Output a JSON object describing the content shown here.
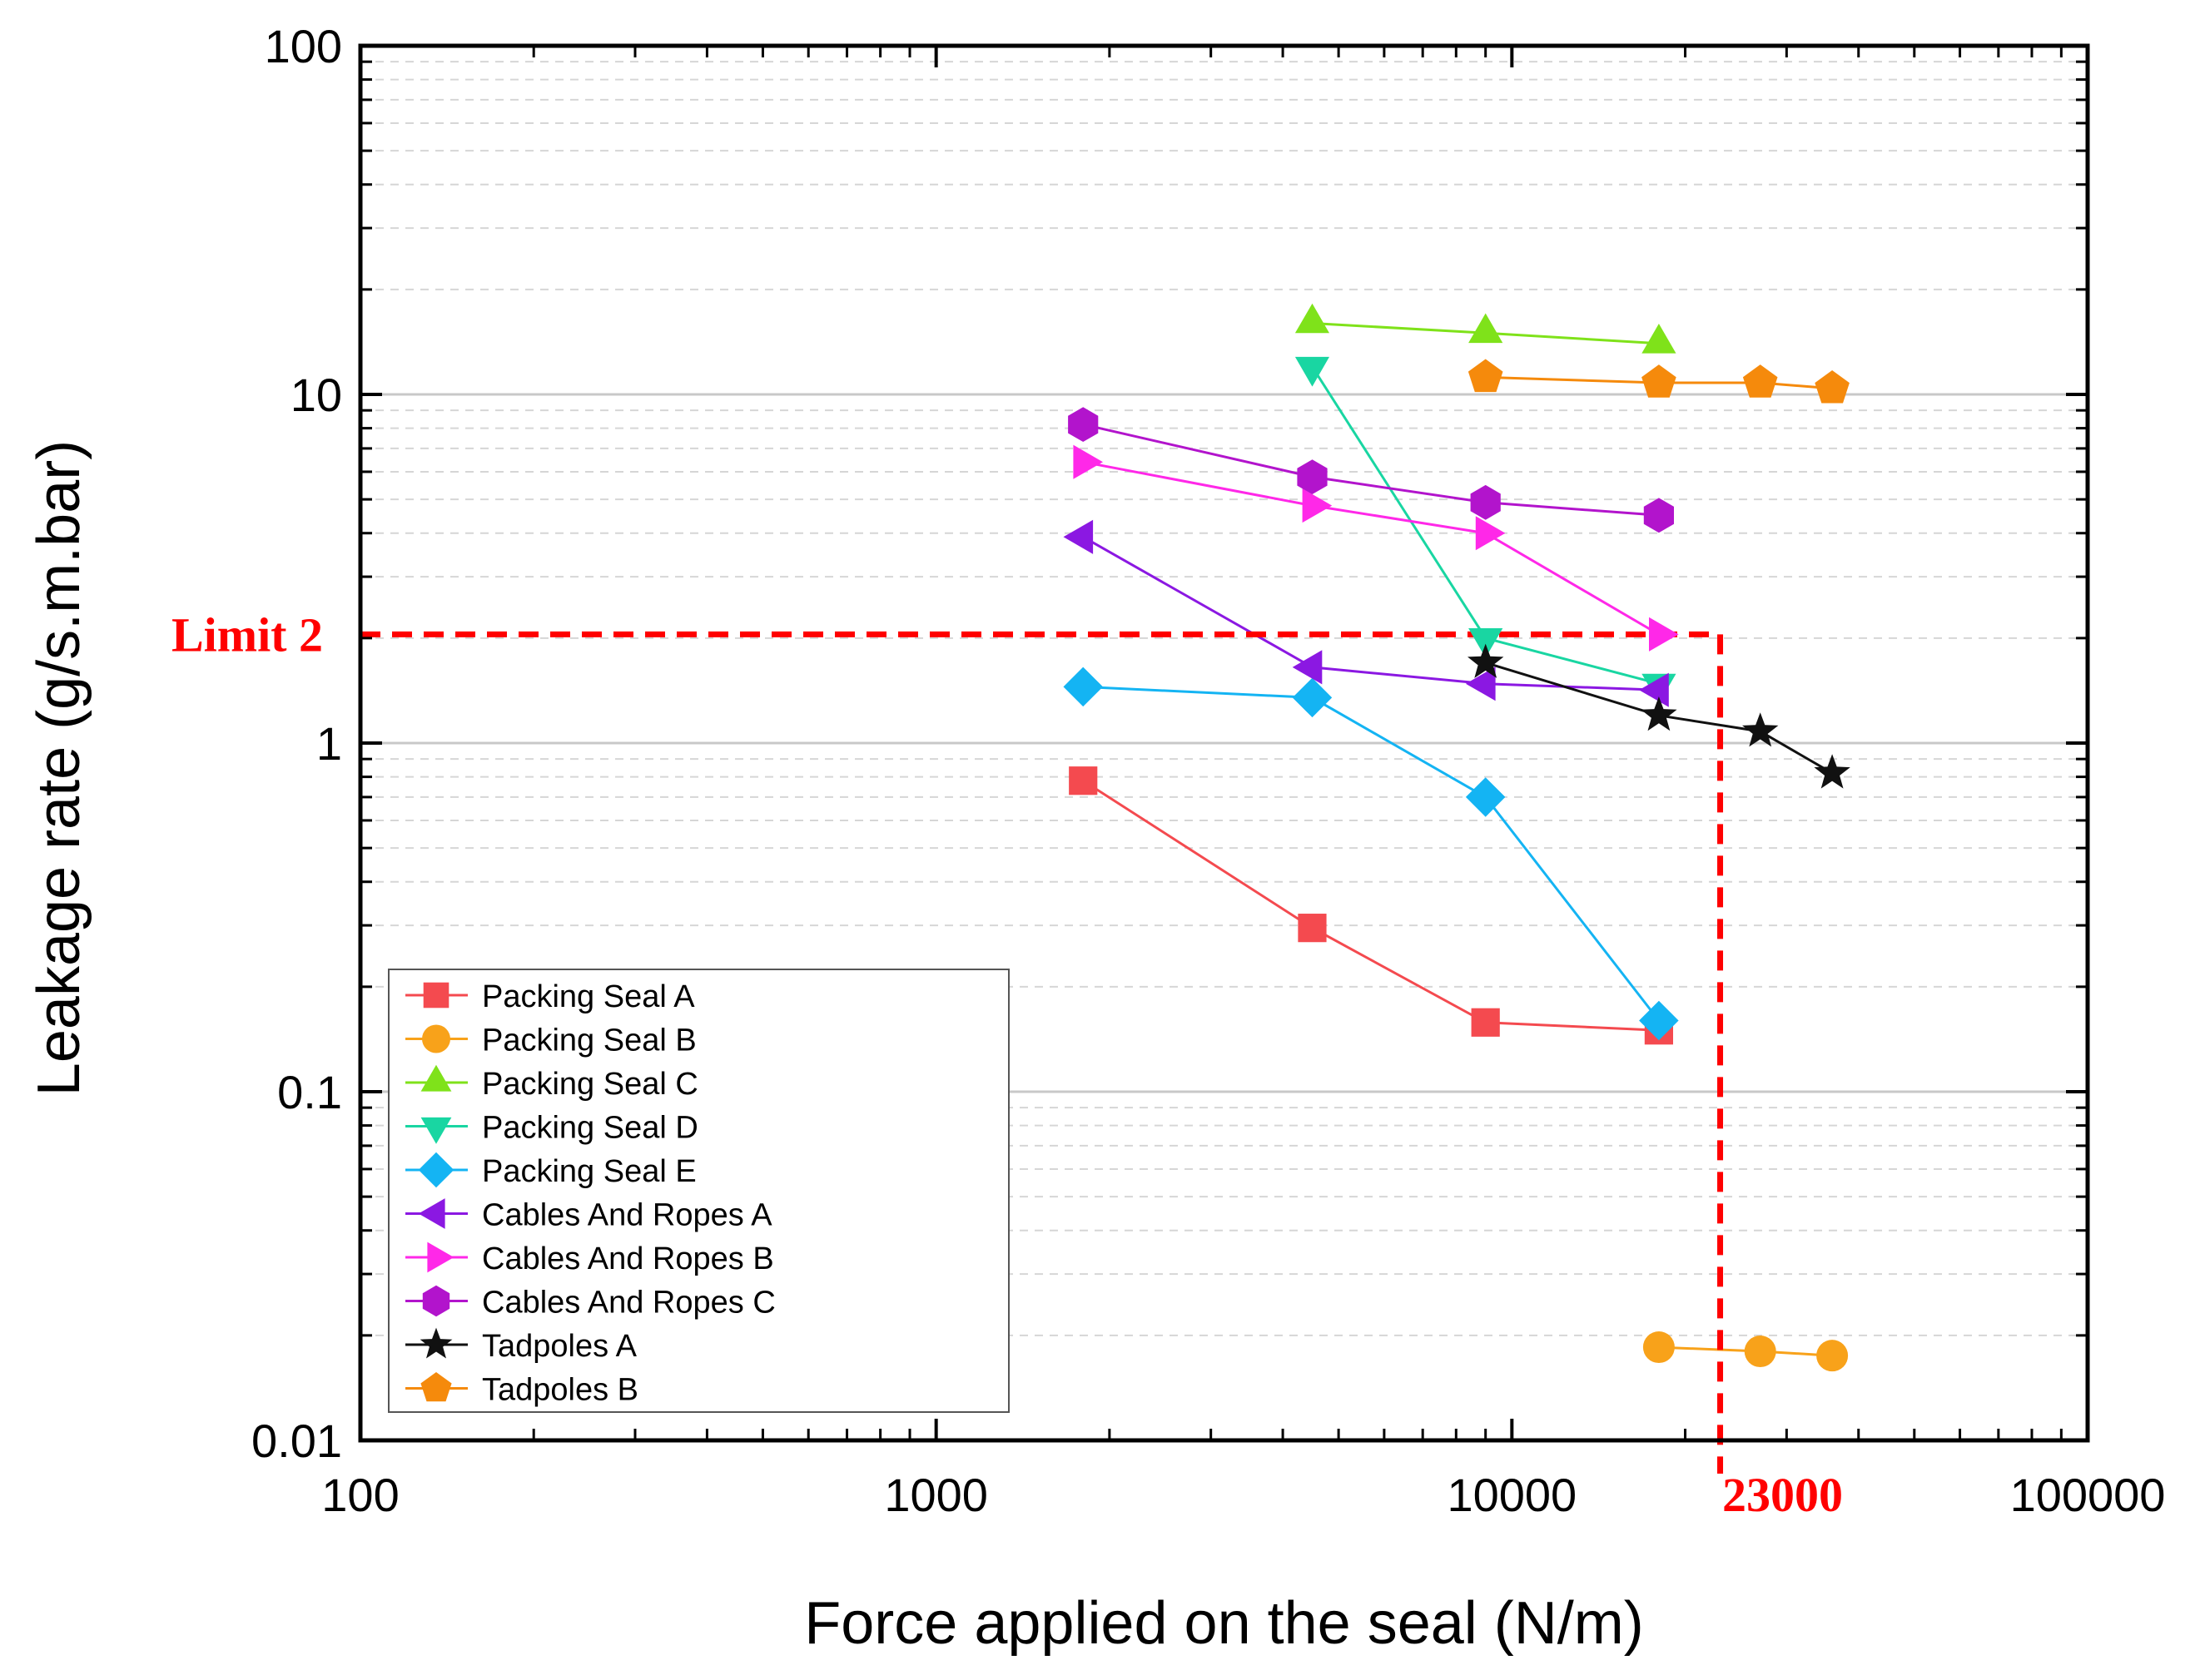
{
  "chart_data": {
    "type": "scatter",
    "xscale": "log",
    "yscale": "log",
    "xlabel": "Force applied on the seal (N/m)",
    "ylabel": "Leakage rate (g/s.m.bar)",
    "xlim": [
      100,
      100000
    ],
    "ylim": [
      0.01,
      100
    ],
    "x_tick_labels": [
      "100",
      "1000",
      "10000",
      "100000"
    ],
    "x_tick_values": [
      100,
      1000,
      10000,
      100000
    ],
    "y_tick_labels": [
      "0.01",
      "0.1",
      "1",
      "10",
      "100"
    ],
    "y_tick_values": [
      0.01,
      0.1,
      1,
      10,
      100
    ],
    "grid": "horizontal dashed minor, solid major",
    "legend_position": "bottom-left",
    "series": [
      {
        "name": "Packing Seal A",
        "marker": "square",
        "color": "#f44a4f",
        "x": [
          1800,
          4500,
          9000,
          18000
        ],
        "y": [
          0.78,
          0.295,
          0.158,
          0.15
        ]
      },
      {
        "name": "Packing Seal B",
        "marker": "circle",
        "color": "#f8a21a",
        "x": [
          18000,
          27000,
          36000
        ],
        "y": [
          0.0185,
          0.018,
          0.0175
        ]
      },
      {
        "name": "Packing Seal C",
        "marker": "triangle-up",
        "color": "#7fe21a",
        "x": [
          4500,
          9000,
          18000
        ],
        "y": [
          16,
          15,
          14
        ]
      },
      {
        "name": "Packing Seal D",
        "marker": "triangle-down",
        "color": "#19d6a2",
        "x": [
          4500,
          9000,
          18000
        ],
        "y": [
          12,
          2,
          1.48
        ]
      },
      {
        "name": "Packing Seal E",
        "marker": "diamond",
        "color": "#14b4f3",
        "x": [
          1800,
          4500,
          9000,
          18000
        ],
        "y": [
          1.45,
          1.35,
          0.7,
          0.16
        ]
      },
      {
        "name": "Cables And Ropes A",
        "marker": "triangle-left",
        "color": "#8b18e2",
        "x": [
          1800,
          4500,
          9000,
          18000
        ],
        "y": [
          3.9,
          1.65,
          1.48,
          1.42
        ]
      },
      {
        "name": "Cables And Ropes B",
        "marker": "triangle-right",
        "color": "#ff28e8",
        "x": [
          1800,
          4500,
          9000,
          18000
        ],
        "y": [
          6.4,
          4.8,
          4,
          2.05
        ]
      },
      {
        "name": "Cables And Ropes C",
        "marker": "hexagon",
        "color": "#b214cc",
        "x": [
          1800,
          4500,
          9000,
          18000
        ],
        "y": [
          8.2,
          5.8,
          4.9,
          4.5
        ]
      },
      {
        "name": "Tadpoles A",
        "marker": "star",
        "color": "#111111",
        "x": [
          9000,
          18000,
          27000,
          36000
        ],
        "y": [
          1.7,
          1.2,
          1.08,
          0.82
        ]
      },
      {
        "name": "Tadpoles B",
        "marker": "pentagon",
        "color": "#f58a0c",
        "x": [
          9000,
          18000,
          27000,
          36000
        ],
        "y": [
          11.2,
          10.8,
          10.8,
          10.4
        ]
      }
    ],
    "annotations": {
      "limit_label": "Limit 2",
      "limit_value": 2.05,
      "force_label": "23000",
      "force_value": 23000,
      "color": "#ff0000"
    }
  }
}
